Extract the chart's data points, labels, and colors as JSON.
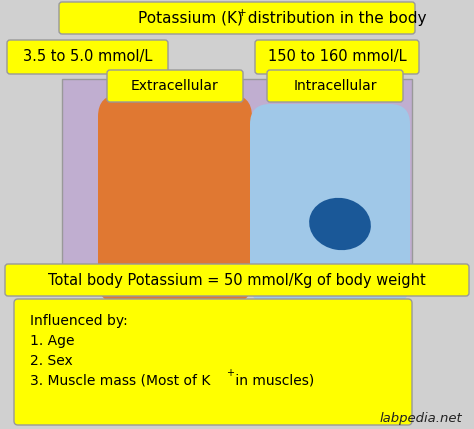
{
  "bg_color": "#d0d0d0",
  "cell_bg_color": "#c0aed0",
  "extracellular_color": "#e07832",
  "intracellular_outer_color": "#a0c8e8",
  "intracellular_inner_color": "#1a5898",
  "label_bg_color": "#ffff00",
  "title_line1": "Potassium (K",
  "title_sup": "+",
  "title_line2": ") distribution in the body",
  "total_body_text_1": "Total body Potassium = 50 mmol/Kg of body weight",
  "inf_line0": "Influenced by:",
  "inf_line1": "1. Age",
  "inf_line2": "2. Sex",
  "inf_line3_a": "3. Muscle mass (Most of K",
  "inf_line3_b": " in muscles)",
  "extracellular_label": "Extracellular",
  "intracellular_label": "Intracellular",
  "extracellular_value": "3.5 to 5.0 mmol/L",
  "intracellular_value": "150 to 160 mmol/L",
  "watermark": "labpedia.net",
  "edge_color": "#999999"
}
